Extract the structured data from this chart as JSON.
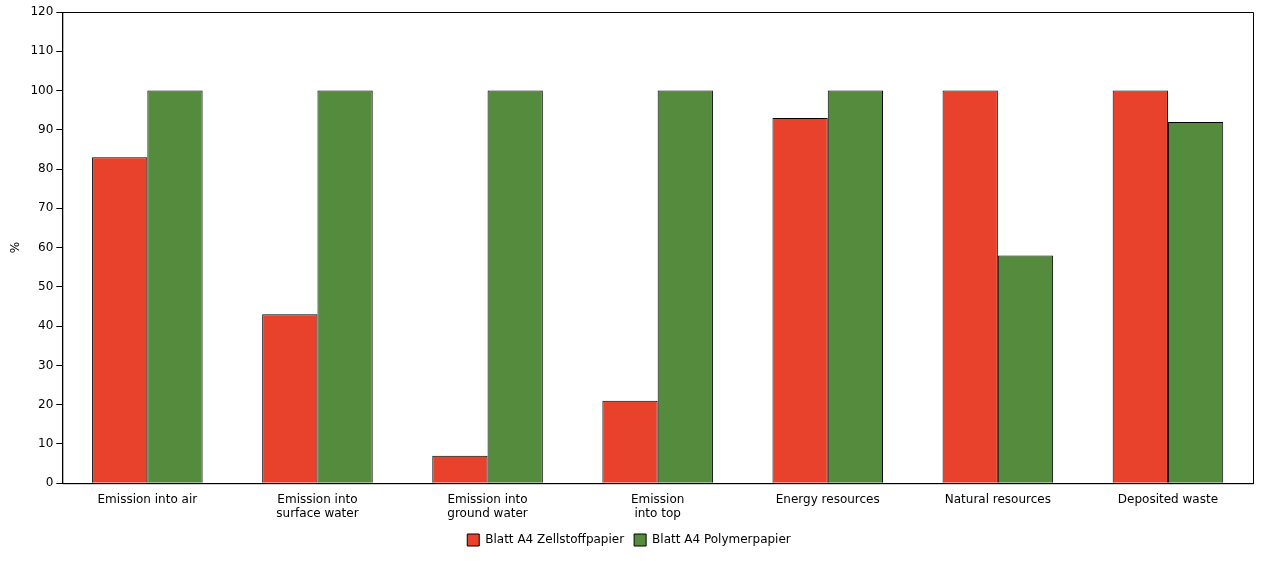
{
  "chart_data": {
    "type": "bar",
    "ylabel": "%",
    "categories": [
      "Emission into air",
      "Emission into\nsurface water",
      "Emission into\nground water",
      "Emission\ninto top",
      "Energy resources",
      "Natural resources",
      "Deposited waste"
    ],
    "series": [
      {
        "name": "Blatt A4 Zellstoffpapier",
        "color": "#e8412c",
        "values": [
          83,
          43,
          7,
          21,
          93,
          100,
          100
        ]
      },
      {
        "name": "Blatt A4 Polymerpapier",
        "color": "#548b3c",
        "values": [
          100,
          100,
          100,
          100,
          100,
          58,
          92
        ]
      }
    ],
    "ylim": [
      0,
      120
    ],
    "yticks": [
      0,
      10,
      20,
      30,
      40,
      50,
      60,
      70,
      80,
      90,
      100,
      110,
      120
    ],
    "grid": false,
    "legend": "bottom"
  }
}
